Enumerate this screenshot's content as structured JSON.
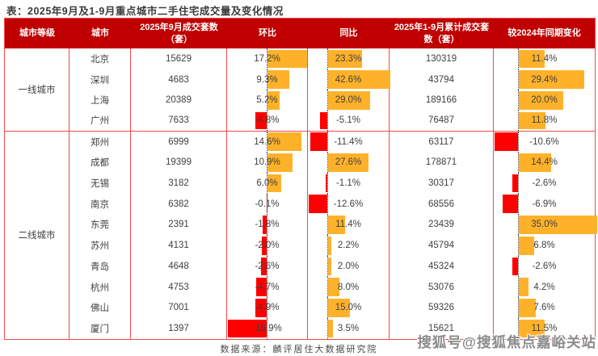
{
  "title": "表：2025年9月及1-9月重点城市二手住宅成交量及变化情况",
  "source_note": "数据来源：麟评居住大数据研究院",
  "watermark": "搜狐号@搜狐焦点嘉峪关站",
  "colors": {
    "header_bg": "#c00000",
    "header_text": "#ffffff",
    "grid_line": "#f04b4b",
    "positive_bar": "#ffb229",
    "negative_bar": "#ff0000",
    "zero_line": "#404040"
  },
  "table_headers": [
    "城市等级",
    "城市",
    "2025年9月成交套数（套）",
    "环比",
    "同比",
    "2025年1-9月累计成交套数（套）",
    "较2024年同期变化"
  ],
  "chart_data": {
    "type": "table",
    "title": "2025年9月及1-9月重点城市二手住宅成交量及变化情况",
    "columns": [
      "城市等级",
      "城市",
      "2025年9月成交套数（套）",
      "环比",
      "同比",
      "2025年1-9月累计成交套数（套）",
      "较2024年同期变化"
    ],
    "inline_bar_columns": [
      "环比",
      "同比",
      "较2024年同期变化"
    ],
    "unit": "套 / %",
    "rows": [
      {
        "tier": "一线城市",
        "city": "北京",
        "sep2025": 15629,
        "mom": 17.2,
        "yoy": 23.3,
        "cum": 130319,
        "vs2024": 11.4
      },
      {
        "tier": "一线城市",
        "city": "深圳",
        "sep2025": 4683,
        "mom": 9.3,
        "yoy": 42.6,
        "cum": 43794,
        "vs2024": 29.4
      },
      {
        "tier": "一线城市",
        "city": "上海",
        "sep2025": 20389,
        "mom": 5.2,
        "yoy": 29.0,
        "cum": 189166,
        "vs2024": 20.0
      },
      {
        "tier": "一线城市",
        "city": "广州",
        "sep2025": 7633,
        "mom": -4.8,
        "yoy": -5.1,
        "cum": 76487,
        "vs2024": 11.8
      },
      {
        "tier": "二线城市",
        "city": "郑州",
        "sep2025": 6999,
        "mom": 14.6,
        "yoy": -11.4,
        "cum": 63117,
        "vs2024": -10.6
      },
      {
        "tier": "二线城市",
        "city": "成都",
        "sep2025": 19399,
        "mom": 10.9,
        "yoy": 27.6,
        "cum": 178871,
        "vs2024": 14.4
      },
      {
        "tier": "二线城市",
        "city": "无锡",
        "sep2025": 3182,
        "mom": 6.0,
        "yoy": -1.1,
        "cum": 30317,
        "vs2024": -2.6
      },
      {
        "tier": "二线城市",
        "city": "南京",
        "sep2025": 6382,
        "mom": -0.1,
        "yoy": -12.6,
        "cum": 68556,
        "vs2024": -6.9
      },
      {
        "tier": "二线城市",
        "city": "东莞",
        "sep2025": 2391,
        "mom": -1.8,
        "yoy": 11.4,
        "cum": 23439,
        "vs2024": 35.0
      },
      {
        "tier": "二线城市",
        "city": "苏州",
        "sep2025": 4131,
        "mom": -2.0,
        "yoy": 2.2,
        "cum": 45794,
        "vs2024": 6.8
      },
      {
        "tier": "二线城市",
        "city": "青岛",
        "sep2025": 4648,
        "mom": -2.6,
        "yoy": 2.0,
        "cum": 45324,
        "vs2024": -2.6
      },
      {
        "tier": "二线城市",
        "city": "杭州",
        "sep2025": 4753,
        "mom": -4.7,
        "yoy": 8.0,
        "cum": 53076,
        "vs2024": 4.2
      },
      {
        "tier": "二线城市",
        "city": "佛山",
        "sep2025": 7001,
        "mom": -4.9,
        "yoy": 15.0,
        "cum": 59326,
        "vs2024": 7.6
      },
      {
        "tier": "二线城市",
        "city": "厦门",
        "sep2025": 1397,
        "mom": -16.9,
        "yoy": 3.5,
        "cum": 15621,
        "vs2024": 11.5
      }
    ]
  }
}
